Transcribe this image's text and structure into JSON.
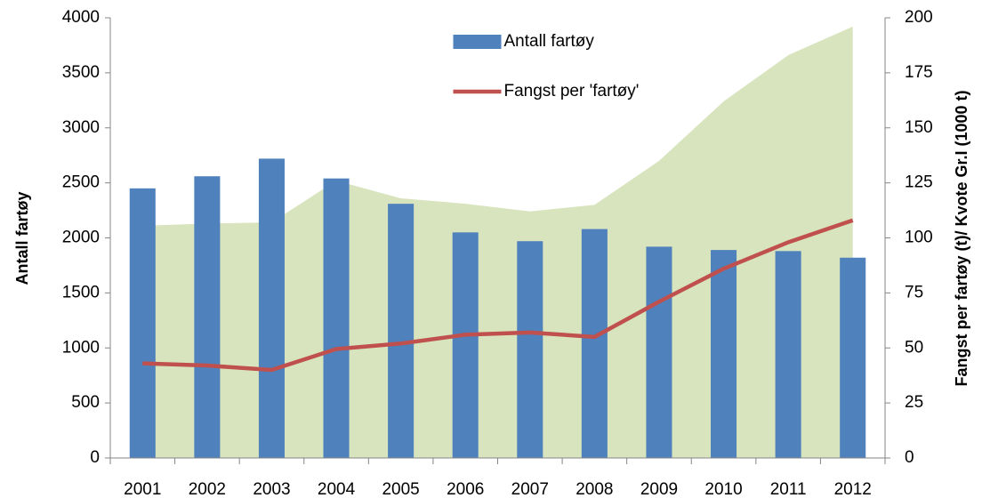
{
  "chart_data": {
    "type": "bar_line_area",
    "categories": [
      "2001",
      "2002",
      "2003",
      "2004",
      "2005",
      "2006",
      "2007",
      "2008",
      "2009",
      "2010",
      "2011",
      "2012"
    ],
    "y_label": "Antall fartøy",
    "y2_label": "Fangst per fartøy (t)/ Kvote Gr.I (1000 t)",
    "ylim": [
      0,
      4000
    ],
    "yticks": [
      0,
      500,
      1000,
      1500,
      2000,
      2500,
      3000,
      3500,
      4000
    ],
    "y2lim": [
      0,
      200
    ],
    "y2ticks": [
      0,
      25,
      50,
      75,
      100,
      125,
      150,
      175,
      200
    ],
    "legend": "top",
    "series": [
      {
        "type": "area",
        "axis": "y2",
        "color": "#d7e4bd",
        "values": [
          105.5,
          106.5,
          107,
          126,
          118,
          115.5,
          112,
          115,
          135,
          162,
          183,
          196
        ]
      },
      {
        "type": "bar",
        "name": "Antall fartøy",
        "color": "#4f81bd",
        "values": [
          2450,
          2560,
          2720,
          2540,
          2310,
          2050,
          1970,
          2080,
          1920,
          1890,
          1880,
          1820
        ]
      },
      {
        "type": "line",
        "name": "Fangst per 'fartøy'",
        "axis": "y2",
        "color": "#c0504d",
        "values": [
          43,
          42,
          40,
          49.5,
          52,
          56,
          57,
          55,
          71,
          86,
          98,
          108
        ]
      }
    ]
  }
}
